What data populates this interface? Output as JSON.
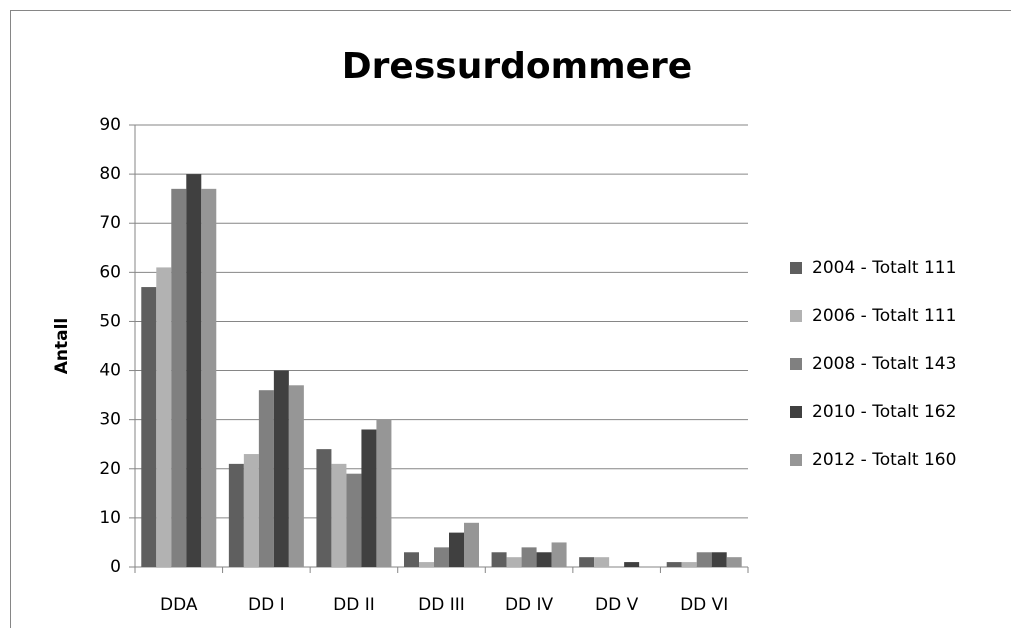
{
  "chart_data": {
    "type": "bar",
    "title": "Dressurdommere",
    "y_label": "Antall",
    "categories": [
      "DDA",
      "DD I",
      "DD II",
      "DD III",
      "DD IV",
      "DD V",
      "DD VI"
    ],
    "series": [
      {
        "name": "2004 - Totalt 111",
        "color": "#5f5f5f",
        "values": [
          57,
          21,
          24,
          3,
          3,
          2,
          1
        ]
      },
      {
        "name": "2006 - Totalt 111",
        "color": "#b2b2b2",
        "values": [
          61,
          23,
          21,
          1,
          2,
          2,
          1
        ]
      },
      {
        "name": "2008 - Totalt 143",
        "color": "#808080",
        "values": [
          77,
          36,
          19,
          4,
          4,
          0,
          3
        ]
      },
      {
        "name": "2010 - Totalt 162",
        "color": "#404040",
        "values": [
          80,
          40,
          28,
          7,
          3,
          1,
          3
        ]
      },
      {
        "name": "2012 - Totalt 160",
        "color": "#969696",
        "values": [
          77,
          37,
          30,
          9,
          5,
          0,
          2
        ]
      }
    ],
    "ylim": [
      0,
      90
    ],
    "yticks": [
      0,
      10,
      20,
      30,
      40,
      50,
      60,
      70,
      80,
      90
    ],
    "grid": true,
    "legend": "right"
  }
}
